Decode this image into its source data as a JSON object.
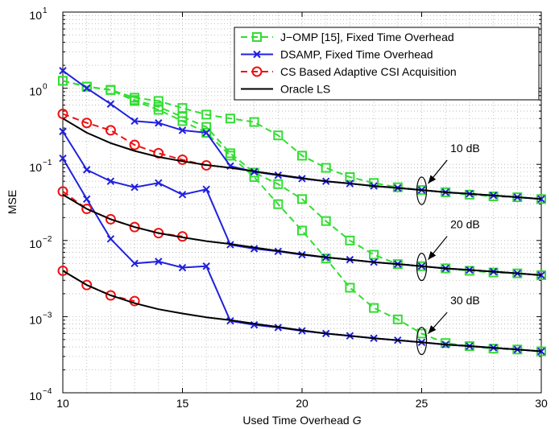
{
  "chart_data": {
    "type": "line",
    "xlabel": "Used Time Overhead",
    "xlabel_italic": "G",
    "ylabel": "MSE",
    "xlim": [
      10,
      30
    ],
    "ylim": [
      0.0001,
      10
    ],
    "yscale": "log",
    "grid": true,
    "legend_position": "top-right",
    "x_ticks": [
      "10",
      "15",
      "20",
      "25",
      "30"
    ],
    "y_ticks": [
      {
        "base": "10",
        "exp": "−4",
        "value": 0.0001
      },
      {
        "base": "10",
        "exp": "−3",
        "value": 0.001
      },
      {
        "base": "10",
        "exp": "−2",
        "value": 0.01
      },
      {
        "base": "10",
        "exp": "−1",
        "value": 0.1
      },
      {
        "base": "10",
        "exp": "0",
        "value": 1
      },
      {
        "base": "10",
        "exp": "1",
        "value": 10
      }
    ],
    "legend": [
      {
        "label": "J−OMP [15], Fixed Time Overhead",
        "color": "#33dd33",
        "dash": "8,5",
        "marker": "square"
      },
      {
        "label": "DSAMP, Fixed Time Overhead",
        "color": "#2020e0",
        "dash": "",
        "marker": "x"
      },
      {
        "label": "CS Based Adaptive CSI Acquisition",
        "color": "#ee1111",
        "dash": "8,5",
        "marker": "circle"
      },
      {
        "label": "Oracle LS",
        "color": "#000000",
        "dash": "",
        "marker": "none"
      }
    ],
    "annotations": [
      {
        "text": "10 dB",
        "x": 26.2,
        "y": 0.145,
        "ellipse_y": 0.045
      },
      {
        "text": "20 dB",
        "x": 26.2,
        "y": 0.0145,
        "ellipse_y": 0.0045
      },
      {
        "text": "30 dB",
        "x": 26.2,
        "y": 0.00145,
        "ellipse_y": 0.00048
      }
    ],
    "series": [
      {
        "name": "J−OMP [15], Fixed Time Overhead",
        "snr": "10 dB",
        "color": "#33dd33",
        "dash": "8,5",
        "marker": "square",
        "x": [
          10,
          11,
          12,
          13,
          14,
          15,
          16,
          17,
          18,
          19,
          20,
          21,
          22,
          23,
          24,
          25,
          26,
          27,
          28,
          29,
          30
        ],
        "y": [
          1.25,
          1.05,
          0.95,
          0.75,
          0.68,
          0.55,
          0.45,
          0.4,
          0.36,
          0.24,
          0.13,
          0.09,
          0.068,
          0.057,
          0.05,
          0.046,
          0.043,
          0.04,
          0.038,
          0.037,
          0.035
        ]
      },
      {
        "name": "J−OMP [15], Fixed Time Overhead",
        "snr": "20 dB",
        "color": "#33dd33",
        "dash": "8,5",
        "marker": "square",
        "x": [
          10,
          11,
          12,
          13,
          14,
          15,
          16,
          17,
          18,
          19,
          20,
          21,
          22,
          23,
          24,
          25,
          26,
          27,
          28,
          29,
          30
        ],
        "y": [
          1.25,
          1.05,
          0.95,
          0.7,
          0.57,
          0.42,
          0.31,
          0.14,
          0.078,
          0.055,
          0.035,
          0.018,
          0.01,
          0.0065,
          0.0049,
          0.0046,
          0.0043,
          0.004,
          0.0038,
          0.0037,
          0.0035
        ]
      },
      {
        "name": "J−OMP [15], Fixed Time Overhead",
        "snr": "30 dB",
        "color": "#33dd33",
        "dash": "8,5",
        "marker": "square",
        "x": [
          10,
          11,
          12,
          13,
          14,
          15,
          16,
          17,
          18,
          19,
          20,
          21,
          22,
          23,
          24,
          25,
          26,
          27,
          28,
          29,
          30
        ],
        "y": [
          1.25,
          1.05,
          0.95,
          0.68,
          0.52,
          0.37,
          0.26,
          0.13,
          0.068,
          0.03,
          0.0135,
          0.0058,
          0.0024,
          0.0013,
          0.00092,
          0.0006,
          0.00045,
          0.00041,
          0.00038,
          0.00037,
          0.00035
        ]
      },
      {
        "name": "DSAMP, Fixed Time Overhead",
        "snr": "10 dB",
        "color": "#2020e0",
        "dash": "",
        "marker": "x",
        "x": [
          10,
          11,
          12,
          13,
          14,
          15,
          16,
          17,
          18,
          19,
          20,
          21,
          22,
          23,
          24,
          25,
          26,
          27,
          28,
          29,
          30
        ],
        "y": [
          1.7,
          1.0,
          0.62,
          0.37,
          0.35,
          0.28,
          0.26,
          0.095,
          0.08,
          0.072,
          0.065,
          0.06,
          0.056,
          0.052,
          0.049,
          0.046,
          0.043,
          0.041,
          0.039,
          0.037,
          0.035
        ]
      },
      {
        "name": "DSAMP, Fixed Time Overhead",
        "snr": "20 dB",
        "color": "#2020e0",
        "dash": "",
        "marker": "x",
        "x": [
          10,
          11,
          12,
          13,
          14,
          15,
          16,
          17,
          18,
          19,
          20,
          21,
          22,
          23,
          24,
          25,
          26,
          27,
          28,
          29,
          30
        ],
        "y": [
          0.27,
          0.085,
          0.06,
          0.05,
          0.057,
          0.04,
          0.047,
          0.0088,
          0.0078,
          0.0072,
          0.0065,
          0.006,
          0.0056,
          0.0052,
          0.0049,
          0.0046,
          0.0043,
          0.0041,
          0.0039,
          0.0037,
          0.0035
        ]
      },
      {
        "name": "DSAMP, Fixed Time Overhead",
        "snr": "30 dB",
        "color": "#2020e0",
        "dash": "",
        "marker": "x",
        "x": [
          10,
          11,
          12,
          13,
          14,
          15,
          16,
          17,
          18,
          19,
          20,
          21,
          22,
          23,
          24,
          25,
          26,
          27,
          28,
          29,
          30
        ],
        "y": [
          0.12,
          0.035,
          0.0105,
          0.005,
          0.0053,
          0.0044,
          0.0046,
          0.00088,
          0.00078,
          0.00072,
          0.00065,
          0.0006,
          0.00056,
          0.00052,
          0.00049,
          0.00046,
          0.00043,
          0.00041,
          0.00039,
          0.00037,
          0.00035
        ]
      },
      {
        "name": "CS Based Adaptive CSI Acquisition",
        "snr": "10 dB",
        "color": "#ee1111",
        "dash": "8,5",
        "marker": "circle",
        "x": [
          10,
          11,
          12,
          13,
          14,
          15,
          16
        ],
        "y": [
          0.46,
          0.35,
          0.28,
          0.18,
          0.14,
          0.115,
          0.097
        ]
      },
      {
        "name": "CS Based Adaptive CSI Acquisition",
        "snr": "20 dB",
        "color": "#ee1111",
        "dash": "8,5",
        "marker": "circle",
        "x": [
          10,
          11,
          12,
          13,
          14,
          15
        ],
        "y": [
          0.044,
          0.026,
          0.019,
          0.015,
          0.0125,
          0.0113
        ]
      },
      {
        "name": "CS Based Adaptive CSI Acquisition",
        "snr": "30 dB",
        "color": "#ee1111",
        "dash": "8,5",
        "marker": "circle",
        "x": [
          10,
          11,
          12,
          13
        ],
        "y": [
          0.004,
          0.0026,
          0.0019,
          0.0016
        ]
      },
      {
        "name": "Oracle LS",
        "snr": "10 dB",
        "color": "#000000",
        "dash": "",
        "marker": "none",
        "x": [
          10,
          11,
          12,
          13,
          14,
          15,
          16,
          17,
          18,
          19,
          20,
          21,
          22,
          23,
          24,
          25,
          26,
          27,
          28,
          29,
          30
        ],
        "y": [
          0.4,
          0.26,
          0.19,
          0.15,
          0.125,
          0.11,
          0.098,
          0.09,
          0.081,
          0.073,
          0.066,
          0.06,
          0.056,
          0.052,
          0.049,
          0.046,
          0.043,
          0.041,
          0.039,
          0.037,
          0.035
        ]
      },
      {
        "name": "Oracle LS",
        "snr": "20 dB",
        "color": "#000000",
        "dash": "",
        "marker": "none",
        "x": [
          10,
          11,
          12,
          13,
          14,
          15,
          16,
          17,
          18,
          19,
          20,
          21,
          22,
          23,
          24,
          25,
          26,
          27,
          28,
          29,
          30
        ],
        "y": [
          0.04,
          0.026,
          0.019,
          0.015,
          0.0125,
          0.011,
          0.0098,
          0.009,
          0.0081,
          0.0073,
          0.0066,
          0.006,
          0.0056,
          0.0052,
          0.0049,
          0.0046,
          0.0043,
          0.0041,
          0.0039,
          0.0037,
          0.0035
        ]
      },
      {
        "name": "Oracle LS",
        "snr": "30 dB",
        "color": "#000000",
        "dash": "",
        "marker": "none",
        "x": [
          10,
          11,
          12,
          13,
          14,
          15,
          16,
          17,
          18,
          19,
          20,
          21,
          22,
          23,
          24,
          25,
          26,
          27,
          28,
          29,
          30
        ],
        "y": [
          0.004,
          0.0026,
          0.0019,
          0.0015,
          0.00125,
          0.0011,
          0.00098,
          0.0009,
          0.00081,
          0.00073,
          0.00066,
          0.0006,
          0.00056,
          0.00052,
          0.00049,
          0.00046,
          0.00043,
          0.00041,
          0.00039,
          0.00037,
          0.00035
        ]
      }
    ]
  }
}
